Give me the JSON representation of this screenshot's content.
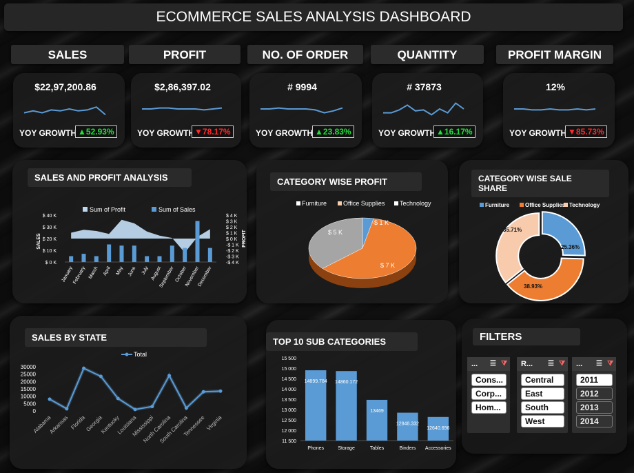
{
  "title": "ECOMMERCE SALES ANALYSIS DASHBOARD",
  "kpis": [
    {
      "label": "SALES",
      "value": "$22,97,200.86",
      "yoy_label": "YOY GROWTH",
      "yoy": "52.93%",
      "dir": "up",
      "spark": [
        3,
        4,
        3,
        4.5,
        4,
        5,
        4,
        4.5,
        6,
        2
      ]
    },
    {
      "label": "PROFIT",
      "value": "$2,86,397.02",
      "yoy_label": "YOY GROWTH",
      "yoy": "78.17%",
      "dir": "down",
      "spark": [
        5,
        5,
        5.5,
        5.5,
        5,
        5,
        5,
        4.5,
        5,
        5.5
      ]
    },
    {
      "label": "NO. OF ORDER",
      "value": "# 9994",
      "yoy_label": "YOY GROWTH",
      "yoy": "23.83%",
      "dir": "up",
      "spark": [
        5,
        5,
        5.5,
        5,
        5,
        5,
        4.5,
        3,
        4,
        5.5
      ]
    },
    {
      "label": "QUANTITY",
      "value": "# 37873",
      "yoy_label": "YOY GROWTH",
      "yoy": "16.17%",
      "dir": "up",
      "spark": [
        3,
        3,
        4.5,
        7,
        4,
        4.5,
        2,
        5,
        3,
        8,
        5
      ]
    },
    {
      "label": "PROFIT MARGIN",
      "value": "12%",
      "yoy_label": "YOY GROWTH",
      "yoy": "85.73%",
      "dir": "down",
      "spark": [
        5,
        5,
        4.5,
        4.5,
        5,
        4.5,
        4.5,
        5,
        4.5,
        5
      ]
    }
  ],
  "panels": {
    "sales_profit": "SALES AND PROFIT ANALYSIS",
    "category_profit": "CATEGORY WISE PROFIT",
    "category_share": "CATEGORY WISE SALE SHARE",
    "sales_state": "SALES BY STATE",
    "top10": "TOP 10 SUB CATEGORIES",
    "filters": "FILTERS"
  },
  "chart_data": [
    {
      "type": "bar",
      "title": "SALES AND PROFIT ANALYSIS",
      "categories": [
        "January",
        "February",
        "March",
        "April",
        "May",
        "June",
        "July",
        "August",
        "September",
        "October",
        "November",
        "December"
      ],
      "series": [
        {
          "name": "Sum of Profit",
          "type": "area",
          "axis": "right",
          "values": [
            1.0,
            1.5,
            1.3,
            0.8,
            3.2,
            2.6,
            1.2,
            0.5,
            0.1,
            -2.4,
            0.3,
            1.6
          ]
        },
        {
          "name": "Sum of Sales",
          "type": "bar",
          "axis": "left",
          "values": [
            5,
            7,
            5,
            15,
            14,
            14,
            5,
            5,
            14,
            12,
            35,
            12
          ]
        }
      ],
      "ylabel": "SALES",
      "y2label": "PROFIT",
      "yticks": [
        "$ 0 K",
        "$ 10 K",
        "$ 20 K",
        "$ 30 K",
        "$ 40 K"
      ],
      "y2ticks": [
        "-$ 4 K",
        "-$ 3 K",
        "-$ 2 K",
        "-$ 1 K",
        "$ 0 K",
        "$ 1 K",
        "$ 2 K",
        "$ 3 K",
        "$ 4 K"
      ],
      "ylim": [
        0,
        40
      ],
      "y2lim": [
        -4,
        4
      ],
      "legend": "top"
    },
    {
      "type": "pie",
      "title": "CATEGORY WISE PROFIT",
      "categories": [
        "Furniture",
        "Office Supplies",
        "Technology"
      ],
      "values": [
        -1,
        7,
        5
      ],
      "labels": [
        "-$ 1 K",
        "$ 7 K",
        "$ 5 K"
      ],
      "colors": [
        "#5b9bd5",
        "#ed7d31",
        "#a5a5a5"
      ],
      "legend": "top"
    },
    {
      "type": "pie",
      "title": "CATEGORY WISE SALE SHARE",
      "categories": [
        "Furniture",
        "Office Supplies",
        "Technology"
      ],
      "values": [
        25.36,
        38.93,
        35.71
      ],
      "labels": [
        "25.36%",
        "38.93%",
        "35.71%"
      ],
      "colors": [
        "#5b9bd5",
        "#ed7d31",
        "#f8cbad"
      ],
      "legend": "top"
    },
    {
      "type": "line",
      "title": "SALES BY STATE",
      "categories": [
        "Alabama",
        "Arkansas",
        "Florida",
        "Georgia",
        "Kentucky",
        "Louisiana",
        "Mississippi",
        "North Carolina",
        "South Carolina",
        "Tennessee",
        "Virginia"
      ],
      "series": [
        {
          "name": "Total",
          "values": [
            8000,
            1500,
            29000,
            23500,
            8500,
            1000,
            3000,
            24000,
            2000,
            13000,
            13500
          ]
        }
      ],
      "yticks": [
        "0",
        "5000",
        "10000",
        "15000",
        "20000",
        "25000",
        "30000"
      ],
      "ylim": [
        0,
        30000
      ],
      "legend": "top"
    },
    {
      "type": "bar",
      "title": "TOP 10 SUB CATEGORIES",
      "categories": [
        "Phones",
        "Storage",
        "Tables",
        "Binders",
        "Accessories"
      ],
      "values": [
        14899.784,
        14860.172,
        13469,
        12848.332,
        12640.696
      ],
      "labels": [
        "14899.784",
        "14860.172",
        "13469",
        "12848.332",
        "12640.696"
      ],
      "yticks": [
        "11 500",
        "12 000",
        "12 500",
        "13 000",
        "13 500",
        "14 000",
        "14 500",
        "15 000",
        "15 500"
      ],
      "ylim": [
        11500,
        15500
      ]
    }
  ],
  "filters": {
    "slicers": [
      {
        "header": "...",
        "items": [
          "Cons...",
          "Corp...",
          "Hom..."
        ]
      },
      {
        "header": "R...",
        "items": [
          "Central",
          "East",
          "South",
          "West"
        ]
      },
      {
        "header": "...",
        "items": [
          "2011",
          "2012",
          "2013",
          "2014"
        ]
      }
    ]
  },
  "icons": {
    "up": "triangle-up-icon",
    "down": "triangle-down-icon",
    "filter": "filter-icon",
    "multiselect": "multiselect-icon"
  }
}
